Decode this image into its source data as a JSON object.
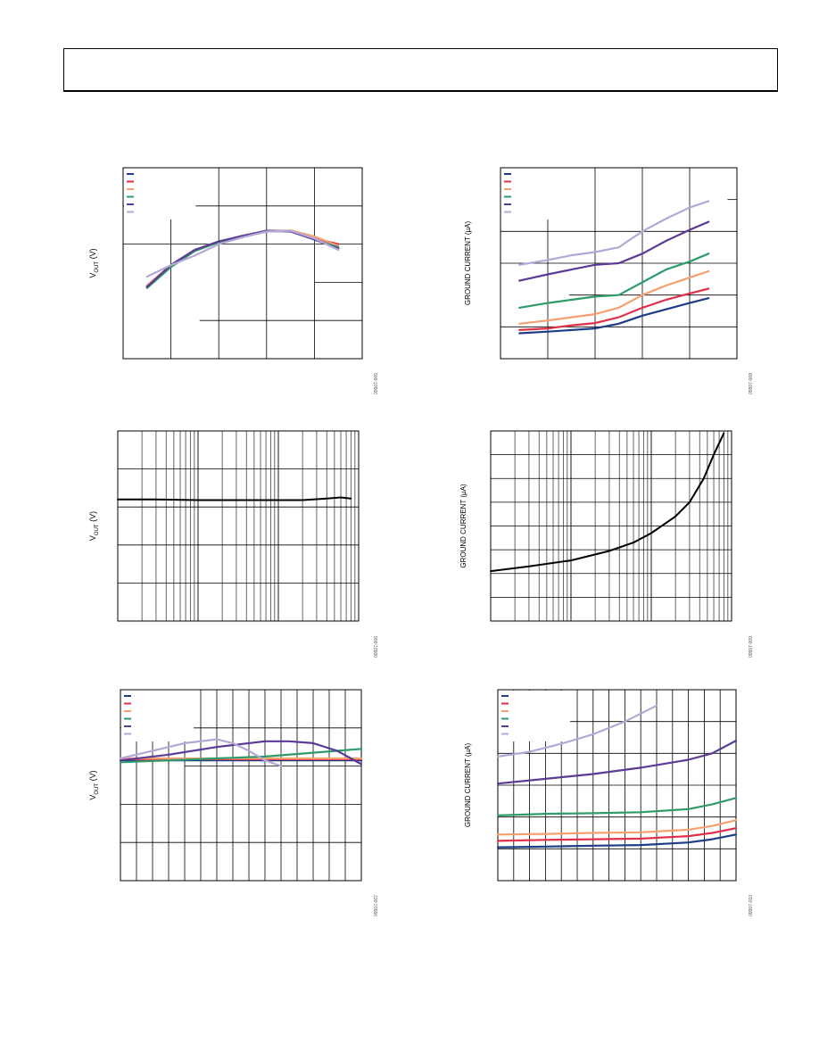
{
  "page": {},
  "colors": {
    "navy": "#1f3c88",
    "red": "#e0304a",
    "orange": "#f5a070",
    "green": "#2e9c6a",
    "purple": "#5b3a96",
    "lavender": "#b5a8d6",
    "black": "#000000"
  },
  "chart_data": [
    {
      "id": "c1",
      "type": "line",
      "ylabel": "V",
      "ylabel_sub": "OUT",
      "ylabel_unit": " (V)",
      "fig_id": "09507-005",
      "xlim": [
        0,
        5
      ],
      "ylim": [
        0,
        5
      ],
      "grid": {
        "x": 5,
        "y": 5
      },
      "legend": {
        "placement": "top-left",
        "count": 6
      },
      "series": [
        {
          "color": "navy",
          "x": [
            0.5,
            1,
            1.5,
            2,
            2.5,
            3,
            3.5,
            4,
            4.5
          ],
          "y": [
            1.9,
            2.45,
            2.85,
            3.05,
            3.2,
            3.35,
            3.35,
            3.15,
            2.9
          ]
        },
        {
          "color": "red",
          "x": [
            0.5,
            1,
            1.5,
            2,
            2.5,
            3,
            3.5,
            4,
            4.5
          ],
          "y": [
            1.9,
            2.45,
            2.85,
            3.05,
            3.2,
            3.35,
            3.35,
            3.15,
            3.0
          ]
        },
        {
          "color": "orange",
          "x": [
            0.5,
            1,
            1.5,
            2,
            2.5,
            3,
            3.5,
            4,
            4.5
          ],
          "y": [
            1.92,
            2.45,
            2.83,
            3.05,
            3.2,
            3.33,
            3.36,
            3.2,
            2.95
          ]
        },
        {
          "color": "green",
          "x": [
            0.5,
            1,
            1.5,
            2,
            2.5,
            3,
            3.5,
            4,
            4.5
          ],
          "y": [
            1.85,
            2.4,
            2.82,
            3.05,
            3.2,
            3.33,
            3.35,
            3.12,
            2.92
          ]
        },
        {
          "color": "purple",
          "x": [
            0.5,
            1,
            1.5,
            2,
            2.5,
            3,
            3.5,
            4,
            4.5
          ],
          "y": [
            1.88,
            2.45,
            2.85,
            3.07,
            3.22,
            3.35,
            3.33,
            3.12,
            2.88
          ]
        },
        {
          "color": "lavender",
          "x": [
            0.5,
            1,
            1.5,
            2,
            2.5,
            3,
            3.5,
            4,
            4.5
          ],
          "y": [
            2.15,
            2.45,
            2.7,
            3.0,
            3.18,
            3.33,
            3.35,
            3.15,
            2.85
          ]
        }
      ]
    },
    {
      "id": "c2",
      "type": "line",
      "ylabel": "GROUND CURRENT (µA)",
      "fig_id": "09507-008",
      "xlim": [
        0,
        5
      ],
      "ylim": [
        0,
        6
      ],
      "grid": {
        "x": 5,
        "y": 6
      },
      "legend": {
        "placement": "top-left",
        "count": 6
      },
      "series": [
        {
          "color": "navy",
          "x": [
            0.4,
            1,
            1.5,
            2,
            2.5,
            3,
            3.5,
            4,
            4.4
          ],
          "y": [
            0.8,
            0.85,
            0.9,
            0.95,
            1.1,
            1.35,
            1.55,
            1.75,
            1.9
          ]
        },
        {
          "color": "red",
          "x": [
            0.4,
            1,
            1.5,
            2,
            2.5,
            3,
            3.5,
            4,
            4.4
          ],
          "y": [
            0.9,
            0.95,
            1.05,
            1.12,
            1.3,
            1.6,
            1.85,
            2.05,
            2.2
          ]
        },
        {
          "color": "orange",
          "x": [
            0.4,
            1,
            1.5,
            2,
            2.5,
            3,
            3.5,
            4,
            4.4
          ],
          "y": [
            1.1,
            1.2,
            1.3,
            1.4,
            1.6,
            2.0,
            2.3,
            2.55,
            2.75
          ]
        },
        {
          "color": "green",
          "x": [
            0.4,
            1,
            1.5,
            2,
            2.5,
            3,
            3.5,
            4,
            4.4
          ],
          "y": [
            1.6,
            1.75,
            1.85,
            1.95,
            2.0,
            2.4,
            2.8,
            3.05,
            3.3
          ]
        },
        {
          "color": "purple",
          "x": [
            0.4,
            1,
            1.5,
            2,
            2.5,
            3,
            3.5,
            4,
            4.4
          ],
          "y": [
            2.45,
            2.65,
            2.8,
            2.95,
            3.0,
            3.3,
            3.7,
            4.05,
            4.3
          ]
        },
        {
          "color": "lavender",
          "x": [
            0.4,
            1,
            1.5,
            2,
            2.5,
            3,
            3.5,
            4,
            4.4
          ],
          "y": [
            2.95,
            3.1,
            3.25,
            3.35,
            3.5,
            4.0,
            4.4,
            4.75,
            4.95
          ]
        }
      ]
    },
    {
      "id": "c3",
      "type": "line",
      "ylabel": "V",
      "ylabel_sub": "OUT",
      "ylabel_unit": " (V)",
      "fig_id": "09507-006",
      "xscale": "log",
      "xlim": [
        1,
        1000
      ],
      "ylim": [
        0,
        5
      ],
      "grid": {
        "y": 5
      },
      "series": [
        {
          "color": "black",
          "x": [
            1,
            3,
            10,
            30,
            100,
            200,
            400,
            600,
            800
          ],
          "y": [
            3.2,
            3.2,
            3.18,
            3.18,
            3.18,
            3.18,
            3.22,
            3.25,
            3.22
          ]
        }
      ]
    },
    {
      "id": "c4",
      "type": "line",
      "ylabel": "GROUND CURRENT (µA)",
      "fig_id": "09507-009",
      "xscale": "log",
      "xlim": [
        1,
        1000
      ],
      "ylim": [
        0,
        8
      ],
      "grid": {
        "y": 8
      },
      "series": [
        {
          "color": "black",
          "x": [
            1,
            3,
            10,
            30,
            60,
            100,
            200,
            300,
            450,
            600,
            800
          ],
          "y": [
            2.1,
            2.3,
            2.55,
            2.95,
            3.3,
            3.7,
            4.4,
            5.0,
            6.0,
            7.0,
            7.9
          ]
        }
      ]
    },
    {
      "id": "c5",
      "type": "line",
      "ylabel": "V",
      "ylabel_sub": "OUT",
      "ylabel_unit": " (V)",
      "fig_id": "09507-007",
      "xlim": [
        0,
        15
      ],
      "ylim": [
        0,
        5
      ],
      "grid": {
        "x": 15,
        "y": 5
      },
      "legend": {
        "placement": "top-left",
        "count": 6
      },
      "series": [
        {
          "color": "navy",
          "x": [
            0,
            15
          ],
          "y": [
            3.15,
            3.15
          ]
        },
        {
          "color": "red",
          "x": [
            0,
            15
          ],
          "y": [
            3.18,
            3.18
          ]
        },
        {
          "color": "orange",
          "x": [
            0,
            15
          ],
          "y": [
            3.2,
            3.2
          ]
        },
        {
          "color": "green",
          "x": [
            0,
            3,
            6,
            9,
            12,
            15
          ],
          "y": [
            3.1,
            3.15,
            3.2,
            3.25,
            3.35,
            3.45
          ]
        },
        {
          "color": "purple",
          "x": [
            0,
            3,
            6,
            9,
            10.5,
            12,
            13.5,
            15
          ],
          "y": [
            3.15,
            3.3,
            3.5,
            3.65,
            3.65,
            3.6,
            3.4,
            3.05
          ]
        },
        {
          "color": "lavender",
          "x": [
            0,
            2,
            4,
            6,
            7,
            8,
            9,
            10
          ],
          "y": [
            3.2,
            3.4,
            3.6,
            3.7,
            3.6,
            3.4,
            3.15,
            3.0
          ]
        }
      ]
    },
    {
      "id": "c6",
      "type": "line",
      "ylabel": "GROUND CURRENT (µA)",
      "fig_id": "09507-010",
      "xlim": [
        0,
        15
      ],
      "ylim": [
        0,
        6
      ],
      "grid": {
        "x": 15,
        "y": 6
      },
      "legend": {
        "placement": "top-left",
        "count": 6
      },
      "series": [
        {
          "color": "navy",
          "x": [
            0,
            3,
            6,
            9,
            12,
            13.5,
            15
          ],
          "y": [
            1.05,
            1.07,
            1.1,
            1.12,
            1.2,
            1.3,
            1.45
          ]
        },
        {
          "color": "red",
          "x": [
            0,
            3,
            6,
            9,
            12,
            13.5,
            15
          ],
          "y": [
            1.25,
            1.28,
            1.3,
            1.32,
            1.4,
            1.5,
            1.65
          ]
        },
        {
          "color": "orange",
          "x": [
            0,
            3,
            6,
            9,
            12,
            13.5,
            15
          ],
          "y": [
            1.45,
            1.47,
            1.5,
            1.52,
            1.6,
            1.72,
            1.9
          ]
        },
        {
          "color": "green",
          "x": [
            0,
            3,
            6,
            9,
            12,
            13.5,
            15
          ],
          "y": [
            2.05,
            2.1,
            2.12,
            2.15,
            2.25,
            2.4,
            2.6
          ]
        },
        {
          "color": "purple",
          "x": [
            0,
            3,
            6,
            9,
            12,
            13.5,
            15
          ],
          "y": [
            3.05,
            3.2,
            3.35,
            3.55,
            3.8,
            4.0,
            4.4
          ]
        },
        {
          "color": "lavender",
          "x": [
            0,
            2,
            4,
            6,
            8,
            10
          ],
          "y": [
            3.9,
            4.05,
            4.3,
            4.6,
            5.0,
            5.5
          ]
        }
      ]
    }
  ]
}
